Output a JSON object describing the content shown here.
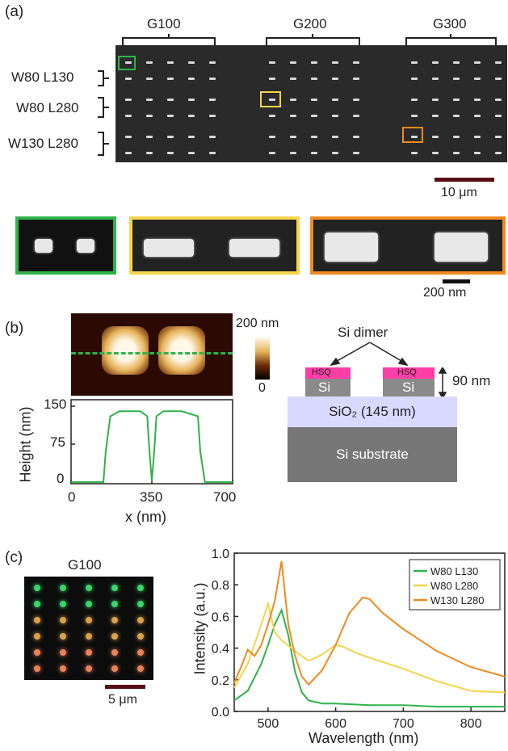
{
  "panel_a": {
    "label": "(a)",
    "groups": [
      "G100",
      "G200",
      "G300"
    ],
    "rows": [
      "W80 L130",
      "W80 L280",
      "W130 L280"
    ],
    "scale_main": "10 μm",
    "scale_zoom": "200 nm",
    "colors": {
      "green": "#2fb34a",
      "yellow": "#f5d54a",
      "orange": "#f08a1e"
    }
  },
  "panel_b": {
    "label": "(b)",
    "colorbar_max": "200 nm",
    "colorbar_min": "0",
    "ylabel": "Height (nm)",
    "xlabel": "x (nm)",
    "yticks": [
      "150",
      "75",
      "0"
    ],
    "xticks": [
      "0",
      "350",
      "700"
    ],
    "profile": {
      "x": [
        0,
        140,
        150,
        170,
        210,
        300,
        330,
        340,
        350,
        360,
        370,
        400,
        480,
        550,
        560,
        580,
        700
      ],
      "y": [
        0,
        0,
        60,
        130,
        140,
        140,
        130,
        60,
        2,
        60,
        130,
        140,
        140,
        130,
        60,
        0,
        0
      ]
    },
    "dimer_label": "Si dimer",
    "hsq": "HSQ",
    "si": "Si",
    "height_label": "90 nm",
    "sio2_label": "SiO₂ (145 nm)",
    "substrate_label": "Si substrate"
  },
  "panel_c": {
    "label": "(c)",
    "darkfield_title": "G100",
    "scale": "5 μm",
    "ylabel": "Intensity (a.u.)",
    "xlabel": "Wavelength (nm)",
    "yticks": [
      "0.0",
      "0.2",
      "0.4",
      "0.6",
      "0.8",
      "1.0"
    ],
    "xticks": [
      "500",
      "600",
      "700",
      "800"
    ]
  },
  "chart_data": {
    "type": "line",
    "xlabel": "Wavelength (nm)",
    "ylabel": "Intensity (a.u.)",
    "xlim": [
      450,
      850
    ],
    "ylim": [
      0,
      1.0
    ],
    "legend_position": "top-right",
    "series": [
      {
        "name": "W80  L130",
        "color": "#2fb34a",
        "x": [
          450,
          470,
          490,
          500,
          510,
          520,
          530,
          540,
          550,
          560,
          580,
          600,
          650,
          700,
          750,
          800,
          850
        ],
        "y": [
          0.07,
          0.13,
          0.3,
          0.42,
          0.55,
          0.64,
          0.48,
          0.25,
          0.12,
          0.07,
          0.05,
          0.05,
          0.04,
          0.04,
          0.03,
          0.03,
          0.03
        ]
      },
      {
        "name": "W80  L280",
        "color": "#f5d54a",
        "x": [
          450,
          470,
          490,
          500,
          510,
          520,
          540,
          560,
          580,
          600,
          610,
          630,
          650,
          700,
          750,
          800,
          850
        ],
        "y": [
          0.15,
          0.3,
          0.55,
          0.68,
          0.5,
          0.45,
          0.38,
          0.32,
          0.36,
          0.42,
          0.41,
          0.37,
          0.34,
          0.27,
          0.19,
          0.13,
          0.12
        ]
      },
      {
        "name": "W130  L280",
        "color": "#f08a1e",
        "x": [
          450,
          460,
          470,
          480,
          490,
          500,
          510,
          520,
          530,
          540,
          550,
          560,
          580,
          600,
          620,
          640,
          650,
          670,
          700,
          750,
          800,
          850
        ],
        "y": [
          0.18,
          0.28,
          0.39,
          0.35,
          0.42,
          0.55,
          0.7,
          0.95,
          0.55,
          0.35,
          0.22,
          0.17,
          0.26,
          0.42,
          0.62,
          0.72,
          0.71,
          0.62,
          0.52,
          0.38,
          0.28,
          0.22
        ]
      }
    ]
  }
}
